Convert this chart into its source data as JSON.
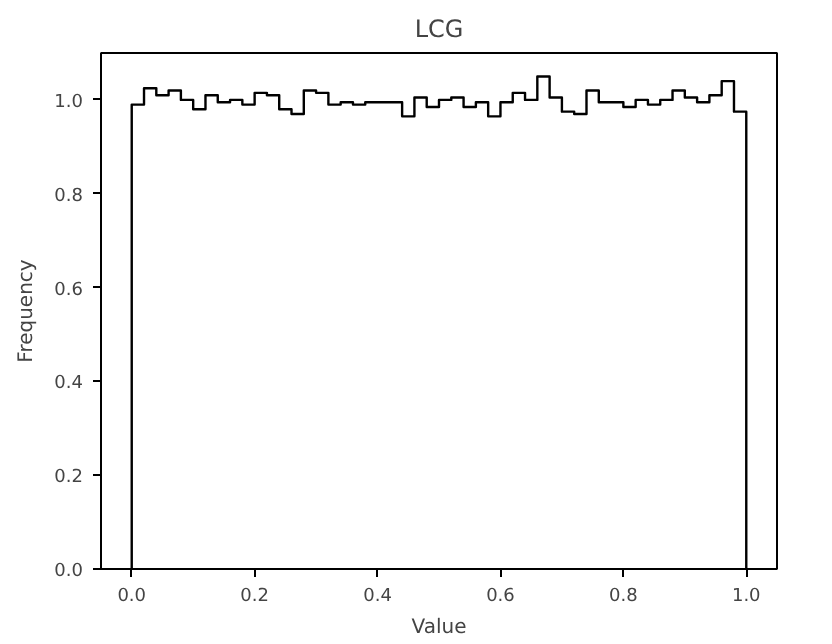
{
  "chart_data": {
    "type": "histogram",
    "title": "LCG",
    "xlabel": "Value",
    "ylabel": "Frequency",
    "bins": [
      0,
      0.02,
      0.04,
      0.06,
      0.08,
      0.1,
      0.12,
      0.14,
      0.16,
      0.18,
      0.2,
      0.22,
      0.24,
      0.26,
      0.28,
      0.3,
      0.32,
      0.34,
      0.36,
      0.38,
      0.4,
      0.42,
      0.44,
      0.46,
      0.48,
      0.5,
      0.52,
      0.54,
      0.56,
      0.58,
      0.6,
      0.62,
      0.64,
      0.66,
      0.68,
      0.7,
      0.72,
      0.74,
      0.76,
      0.78,
      0.8,
      0.82,
      0.84,
      0.86,
      0.88,
      0.9,
      0.92,
      0.94,
      0.96,
      0.98,
      1.0
    ],
    "values": [
      0.99,
      1.025,
      1.01,
      1.02,
      1.0,
      0.98,
      1.01,
      0.995,
      1.0,
      0.99,
      1.015,
      1.01,
      0.98,
      0.97,
      1.02,
      1.015,
      0.99,
      0.995,
      0.99,
      0.995,
      0.995,
      0.995,
      0.965,
      1.005,
      0.985,
      1.0,
      1.005,
      0.985,
      0.995,
      0.965,
      0.995,
      1.015,
      1.0,
      1.05,
      1.005,
      0.975,
      0.97,
      1.02,
      0.995,
      0.995,
      0.985,
      1.0,
      0.99,
      1.0,
      1.02,
      1.005,
      0.995,
      1.01,
      1.04,
      0.975
    ],
    "color": "#000000",
    "xlim": [
      -0.05,
      1.05
    ],
    "ylim": [
      0,
      1.1
    ],
    "xticks": [
      {
        "value": 0,
        "label": "0.0"
      },
      0.2,
      0.4,
      0.6,
      0.8,
      {
        "value": 1,
        "label": "1.0"
      }
    ],
    "yticks": [
      {
        "value": 0,
        "label": "0.0"
      },
      0.2,
      0.4,
      0.6,
      0.8,
      {
        "value": 1,
        "label": "1.0"
      }
    ]
  }
}
